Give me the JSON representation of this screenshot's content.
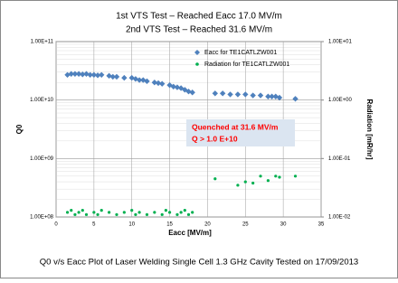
{
  "chart_data": {
    "type": "scatter",
    "title": "1st VTS Test – Reached Eacc 17.0 MV/m",
    "subtitle": "2nd VTS Test – Reached 31.6 MV/m",
    "caption": "Q0 v/s Eacc Plot of Laser Welding Single Cell 1.3 GHz Cavity Tested on 17/09/2013",
    "x_label": "Eacc [MV/m]",
    "y_label": "Q0",
    "y2_label": "Radiation [mR/hr]",
    "annotation": [
      "Quenched at  31.6 MV/m",
      "Q  > 1.0 E+10"
    ],
    "xlim": [
      0,
      35
    ],
    "xticks": [
      0,
      5,
      10,
      15,
      20,
      25,
      30,
      35
    ],
    "ylim": [
      100000000,
      100000000000
    ],
    "yticks": [
      {
        "value": 100000000,
        "label": "1.00E+08"
      },
      {
        "value": 1000000000,
        "label": "1.00E+09"
      },
      {
        "value": 10000000000,
        "label": "1.00E+10"
      },
      {
        "value": 100000000000,
        "label": "1.00E+11"
      }
    ],
    "y2lim": [
      0.01,
      10
    ],
    "y2ticks": [
      {
        "value": 0.01,
        "label": "1.00E-02"
      },
      {
        "value": 0.1,
        "label": "1.00E-01"
      },
      {
        "value": 1,
        "label": "1.00E+00"
      },
      {
        "value": 10,
        "label": "1.00E+01"
      }
    ],
    "log_y": true,
    "grid": true,
    "legend": "upper right",
    "series": [
      {
        "name": "Eacc for TE1CATLZW001",
        "color": "#4f81bd",
        "marker": "diamond",
        "x": [
          1.5,
          2,
          2.5,
          3,
          3.5,
          4,
          4.5,
          5,
          5.5,
          6,
          7,
          7.5,
          8,
          9,
          10,
          10.5,
          11,
          11.5,
          12,
          13,
          13.5,
          14,
          15,
          15.5,
          16,
          16.5,
          17,
          17.5,
          18,
          21,
          22,
          23,
          24,
          25,
          26,
          27,
          28,
          28.5,
          29,
          29.5,
          31.6
        ],
        "values": [
          27000000000,
          28000000000,
          28000000000,
          28000000000,
          27500000000,
          28000000000,
          27000000000,
          27000000000,
          26500000000,
          27000000000,
          26000000000,
          25000000000,
          25000000000,
          24000000000,
          24000000000,
          23000000000,
          22000000000,
          22000000000,
          21000000000,
          20000000000,
          19500000000,
          19000000000,
          18000000000,
          17000000000,
          16500000000,
          16000000000,
          15000000000,
          14000000000,
          13500000000,
          13000000000,
          13000000000,
          12500000000,
          12500000000,
          12500000000,
          12000000000,
          12000000000,
          11500000000,
          11500000000,
          11500000000,
          11000000000,
          10500000000
        ]
      },
      {
        "name": "Radiation for TE1CATLZW001",
        "color": "#00b050",
        "marker": "circle",
        "axis": "y2",
        "x": [
          1.5,
          2,
          2.5,
          3,
          3.5,
          4,
          5,
          5.5,
          6,
          7,
          8,
          9,
          10,
          10.5,
          11,
          12,
          13,
          14,
          14.5,
          15,
          16,
          16.5,
          17,
          17.5,
          18,
          21,
          24,
          25,
          26,
          27,
          28,
          29,
          29.5,
          31.6
        ],
        "values": [
          0.012,
          0.013,
          0.011,
          0.012,
          0.013,
          0.011,
          0.012,
          0.011,
          0.013,
          0.012,
          0.011,
          0.012,
          0.013,
          0.011,
          0.012,
          0.011,
          0.012,
          0.011,
          0.013,
          0.012,
          0.011,
          0.012,
          0.013,
          0.011,
          0.012,
          0.045,
          0.035,
          0.04,
          0.038,
          0.05,
          0.042,
          0.05,
          0.048,
          0.05
        ]
      }
    ]
  }
}
